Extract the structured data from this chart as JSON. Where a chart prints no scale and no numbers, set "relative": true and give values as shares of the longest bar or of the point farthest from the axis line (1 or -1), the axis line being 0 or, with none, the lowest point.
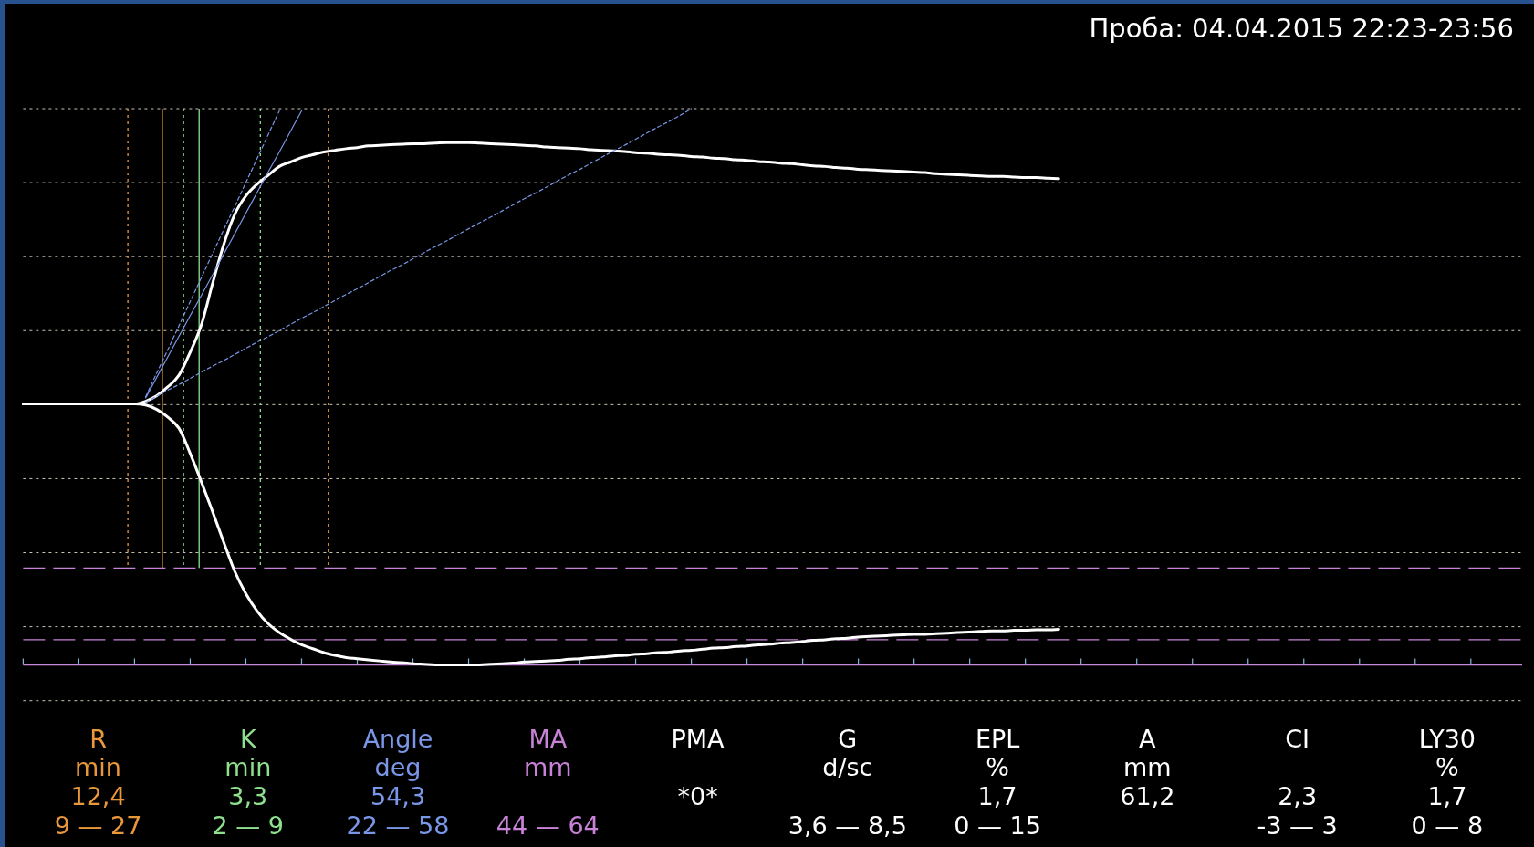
{
  "chart_data": {
    "type": "line",
    "title": "Проба: 04.04.2015 22:23-23:56",
    "relative": true,
    "grid": "y",
    "categories": [
      null,
      null,
      null,
      null,
      null,
      null,
      null,
      null,
      null,
      null,
      null,
      null,
      null,
      null,
      null,
      null,
      null,
      null,
      null,
      null,
      null,
      null,
      null,
      null,
      null,
      null,
      null,
      null,
      null,
      null,
      null,
      null,
      null,
      null,
      null,
      null,
      null,
      null,
      null,
      null,
      null,
      null,
      null,
      null,
      null,
      null,
      null,
      null,
      null,
      null,
      null,
      null,
      null,
      null,
      null,
      null,
      null,
      null,
      null,
      null,
      null,
      null,
      null,
      null,
      null,
      null,
      null,
      null,
      null,
      null,
      null,
      null,
      null,
      null,
      null,
      null,
      null,
      null,
      null,
      null,
      null,
      null,
      null,
      null,
      null,
      null,
      null,
      null,
      null,
      null,
      null,
      null,
      null,
      null,
      null,
      null,
      null,
      null,
      null,
      null,
      null,
      null,
      null,
      null,
      null,
      null,
      null,
      null,
      null,
      null,
      null,
      null,
      null,
      null,
      null,
      null,
      null,
      null,
      null,
      null,
      null,
      null,
      null,
      null,
      null,
      null,
      null,
      null,
      null,
      null,
      null,
      null,
      null,
      null,
      null
    ],
    "series": [
      {
        "color": "#ffffff",
        "line_style": "solid",
        "values": [
          0.469,
          0.469,
          0.469,
          0.469,
          0.469,
          0.469,
          0.469,
          0.469,
          0.469,
          0.469,
          0.469,
          0.474,
          0.484,
          0.5,
          0.521,
          0.562,
          0.611,
          0.685,
          0.755,
          0.81,
          0.843,
          0.864,
          0.88,
          0.896,
          0.904,
          0.912,
          0.917,
          0.922,
          0.925,
          0.928,
          0.93,
          0.933,
          0.934,
          0.935,
          0.936,
          0.937,
          0.937,
          0.938,
          0.939,
          0.939,
          0.939,
          0.938,
          0.937,
          0.936,
          0.935,
          0.934,
          0.933,
          0.931,
          0.93,
          0.929,
          0.928,
          0.926,
          0.925,
          0.924,
          0.923,
          0.921,
          0.92,
          0.918,
          0.917,
          0.916,
          0.914,
          0.913,
          0.911,
          0.91,
          0.908,
          0.907,
          0.905,
          0.904,
          0.902,
          0.901,
          0.899,
          0.897,
          0.896,
          0.894,
          0.893,
          0.891,
          0.89,
          0.889,
          0.888,
          0.887,
          0.886,
          0.885,
          0.883,
          0.882,
          0.881,
          0.88,
          0.879,
          0.878,
          0.878,
          0.877,
          0.876,
          0.876,
          0.875,
          0.874,
          null,
          null,
          null,
          null,
          null,
          null,
          null,
          null,
          null,
          null,
          null,
          null,
          null,
          null,
          null,
          null,
          null,
          null,
          null,
          null,
          null,
          null,
          null,
          null,
          null,
          null,
          null,
          null,
          null,
          null,
          null,
          null,
          null,
          null,
          null,
          null,
          null,
          null,
          null,
          null,
          null
        ]
      },
      {
        "color": "#ffffff",
        "line_style": "solid",
        "values": [
          0.469,
          0.469,
          0.469,
          0.469,
          0.469,
          0.469,
          0.469,
          0.469,
          0.469,
          0.469,
          0.469,
          0.467,
          0.459,
          0.445,
          0.425,
          0.38,
          0.329,
          0.276,
          0.221,
          0.168,
          0.128,
          0.097,
          0.074,
          0.058,
          0.046,
          0.036,
          0.029,
          0.022,
          0.017,
          0.013,
          0.011,
          0.009,
          0.007,
          0.005,
          0.004,
          0.002,
          0.001,
          0,
          0,
          0,
          0,
          0,
          0.001,
          0.002,
          0.003,
          0.005,
          0.006,
          0.007,
          0.008,
          0.01,
          0.011,
          0.013,
          0.014,
          0.016,
          0.017,
          0.019,
          0.02,
          0.022,
          0.023,
          0.025,
          0.026,
          0.028,
          0.03,
          0.031,
          0.033,
          0.034,
          0.036,
          0.037,
          0.039,
          0.04,
          0.042,
          0.044,
          0.045,
          0.047,
          0.048,
          0.05,
          0.051,
          0.052,
          0.053,
          0.054,
          0.055,
          0.055,
          0.056,
          0.057,
          0.058,
          0.059,
          0.06,
          0.061,
          0.061,
          0.062,
          0.062,
          0.063,
          0.063,
          0.064,
          null,
          null,
          null,
          null,
          null,
          null,
          null,
          null,
          null,
          null,
          null,
          null,
          null,
          null,
          null,
          null,
          null,
          null,
          null,
          null,
          null,
          null,
          null,
          null,
          null,
          null,
          null,
          null,
          null,
          null,
          null,
          null,
          null,
          null,
          null,
          null,
          null,
          null,
          null,
          null,
          null
        ]
      },
      {
        "color": "#7a96e6",
        "line_style": "solid",
        "values": [
          null,
          null,
          null,
          null,
          null,
          null,
          null,
          null,
          null,
          null,
          null,
          0.48,
          0.517,
          0.554,
          0.591,
          0.628,
          0.664,
          0.701,
          0.738,
          0.775,
          0.812,
          0.849,
          0.886,
          0.922,
          0.959,
          0.996,
          null,
          null,
          null,
          null,
          null,
          null,
          null,
          null,
          null,
          null,
          null,
          null,
          null,
          null,
          null,
          null,
          null,
          null,
          null,
          null,
          null,
          null,
          null,
          null,
          null,
          null,
          null,
          null,
          null,
          null,
          null,
          null,
          null,
          null,
          null,
          null,
          null,
          null,
          null,
          null,
          null,
          null,
          null,
          null,
          null,
          null,
          null,
          null,
          null,
          null,
          null,
          null,
          null,
          null,
          null,
          null,
          null,
          null,
          null,
          null,
          null,
          null,
          null,
          null,
          null,
          null,
          null,
          null,
          null,
          null,
          null,
          null,
          null,
          null,
          null,
          null,
          null,
          null,
          null,
          null,
          null,
          null,
          null,
          null,
          null,
          null,
          null,
          null,
          null,
          null,
          null,
          null,
          null,
          null,
          null,
          null,
          null,
          null,
          null,
          null,
          null,
          null,
          null,
          null,
          null,
          null,
          null,
          null,
          null
        ]
      },
      {
        "color": "#7a96e6",
        "line_style": "dashed",
        "values": [
          null,
          null,
          null,
          null,
          null,
          null,
          null,
          null,
          null,
          null,
          null,
          0.482,
          0.525,
          0.567,
          0.61,
          0.653,
          0.696,
          0.739,
          0.782,
          0.824,
          0.867,
          0.91,
          0.953,
          0.996,
          null,
          null,
          null,
          null,
          null,
          null,
          null,
          null,
          null,
          null,
          null,
          null,
          null,
          null,
          null,
          null,
          null,
          null,
          null,
          null,
          null,
          null,
          null,
          null,
          null,
          null,
          null,
          null,
          null,
          null,
          null,
          null,
          null,
          null,
          null,
          null,
          null,
          null,
          null,
          null,
          null,
          null,
          null,
          null,
          null,
          null,
          null,
          null,
          null,
          null,
          null,
          null,
          null,
          null,
          null,
          null,
          null,
          null,
          null,
          null,
          null,
          null,
          null,
          null,
          null,
          null,
          null,
          null,
          null,
          null,
          null,
          null,
          null,
          null,
          null,
          null,
          null,
          null,
          null,
          null,
          null,
          null,
          null,
          null,
          null,
          null,
          null,
          null,
          null,
          null,
          null,
          null,
          null,
          null,
          null,
          null,
          null,
          null,
          null,
          null,
          null,
          null,
          null,
          null,
          null,
          null,
          null,
          null,
          null,
          null,
          null
        ]
      },
      {
        "color": "#7a96e6",
        "line_style": "dashed",
        "values": [
          null,
          null,
          null,
          null,
          null,
          null,
          null,
          null,
          null,
          null,
          null,
          0.472,
          0.483,
          0.494,
          0.504,
          0.515,
          0.526,
          0.537,
          0.547,
          0.558,
          0.569,
          0.58,
          0.59,
          0.601,
          0.612,
          0.623,
          0.633,
          0.644,
          0.655,
          0.666,
          0.676,
          0.687,
          0.698,
          0.709,
          0.719,
          0.73,
          0.741,
          0.752,
          0.762,
          0.773,
          0.784,
          0.795,
          0.805,
          0.816,
          0.827,
          0.838,
          0.848,
          0.859,
          0.87,
          0.881,
          0.891,
          0.902,
          0.913,
          0.924,
          0.934,
          0.945,
          0.956,
          0.967,
          0.977,
          0.988,
          1.0,
          null,
          null,
          null,
          null,
          null,
          null,
          null,
          null,
          null,
          null,
          null,
          null,
          null,
          null,
          null,
          null,
          null,
          null,
          null,
          null,
          null,
          null,
          null,
          null,
          null,
          null,
          null,
          null,
          null,
          null,
          null,
          null,
          null,
          null,
          null,
          null,
          null,
          null,
          null,
          null,
          null,
          null,
          null,
          null,
          null,
          null,
          null,
          null,
          null,
          null,
          null,
          null,
          null,
          null,
          null,
          null,
          null,
          null,
          null,
          null,
          null,
          null,
          null,
          null,
          null,
          null,
          null,
          null,
          null,
          null,
          null,
          null,
          null,
          null
        ]
      }
    ],
    "ref_lines": [
      {
        "axis": "y",
        "value": 0.174,
        "color": "#c882d8",
        "line_style": "dashed"
      },
      {
        "axis": "y",
        "value": 0.045,
        "color": "#c882d8",
        "line_style": "dashed"
      }
    ],
    "annotations": [
      "R\nmin\n12,4\n9 — 27",
      "K\nmin\n3,3\n2 — 9",
      "Angle\ndeg\n54,3\n22 — 58",
      "MA\nmm\n\n44 — 64",
      "PMA\n\n*0*\n",
      "G\nd/sc\n\n3,6 — 8,5",
      "EPL\n%\n1,7\n0 — 15",
      "A\nmm\n61,2\n",
      "CI\n\n2,3\n-3 — 3",
      "LY30\n%\n1,7\n0 — 8"
    ]
  }
}
